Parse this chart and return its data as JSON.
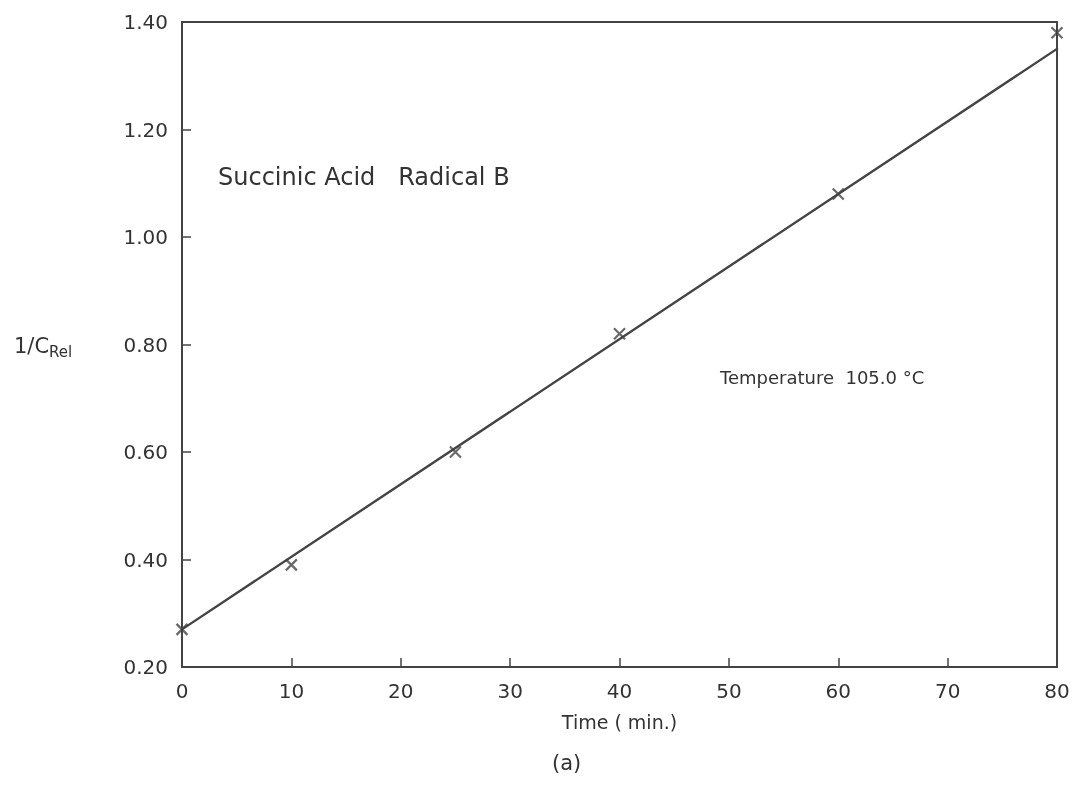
{
  "chart_data": {
    "type": "scatter",
    "xlabel": "Time ( min.)",
    "ylabel": "1/C$_{Rel}$",
    "annotations": [
      "Succinic Acid   Radical B",
      "Temperature  105.0 °C",
      "(a)"
    ],
    "series": [
      {
        "color": "#444444",
        "marker": "cross",
        "x": [
          0,
          10,
          25,
          40,
          60,
          80
        ],
        "values": [
          0.27,
          0.39,
          0.6,
          0.82,
          1.08,
          1.38
        ]
      },
      {
        "type": "line",
        "color": "#444444",
        "marker": "none",
        "line_style": "solid",
        "x": [
          0,
          80
        ],
        "values": [
          0.27,
          1.35
        ]
      }
    ],
    "xlim": [
      0,
      80
    ],
    "xticks": [
      0,
      10,
      20,
      30,
      40,
      50,
      60,
      70,
      80
    ],
    "ylim": [
      0.2,
      1.4
    ],
    "yticks": [
      {
        "value": 0.2,
        "label": "0.20"
      },
      {
        "value": 0.4,
        "label": "0.40"
      },
      {
        "value": 0.6,
        "label": "0.60"
      },
      {
        "value": 0.8,
        "label": "0.80"
      },
      {
        "value": 1.0,
        "label": "1.00"
      },
      {
        "value": 1.2,
        "label": "1.20"
      },
      {
        "value": 1.4,
        "label": "1.40"
      }
    ],
    "grid": false
  }
}
